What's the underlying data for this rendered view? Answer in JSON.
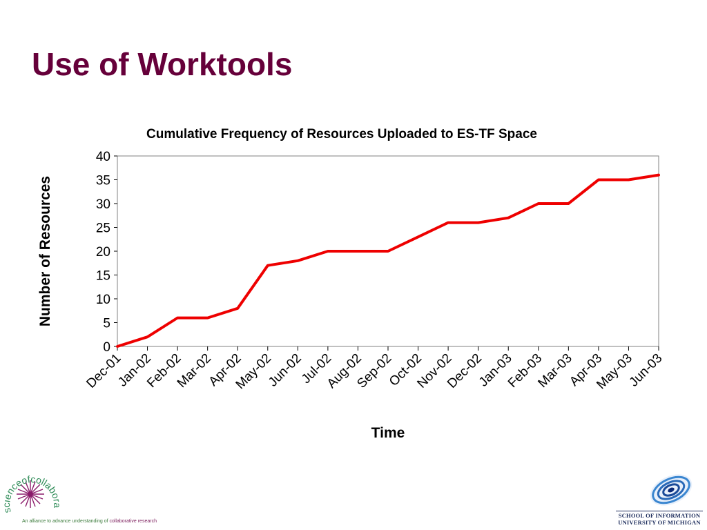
{
  "slide": {
    "title": "Use of Worktools"
  },
  "chart_data": {
    "type": "line",
    "title": "Cumulative Frequency of Resources Uploaded to ES-TF Space",
    "xlabel": "Time",
    "ylabel": "Number of Resources",
    "categories": [
      "Dec-01",
      "Jan-02",
      "Feb-02",
      "Mar-02",
      "Apr-02",
      "May-02",
      "Jun-02",
      "Jul-02",
      "Aug-02",
      "Sep-02",
      "Oct-02",
      "Nov-02",
      "Dec-02",
      "Jan-03",
      "Feb-03",
      "Mar-03",
      "Apr-03",
      "May-03",
      "Jun-03"
    ],
    "values": [
      0,
      2,
      6,
      6,
      8,
      17,
      18,
      20,
      20,
      20,
      23,
      26,
      26,
      27,
      30,
      30,
      35,
      35,
      36
    ],
    "ylim": [
      0,
      40
    ],
    "yticks": [
      0,
      5,
      10,
      15,
      20,
      25,
      30,
      35,
      40
    ],
    "grid": false,
    "legend": "none",
    "line_color": "#ee0000"
  },
  "footer": {
    "left_logo_text": [
      "scienceofcollaboratories"
    ],
    "tagline_start": "An alliance to advance understanding of ",
    "tagline_accent": "collaborative research",
    "school_line1": "SCHOOL OF INFORMATION",
    "school_line2": "UNIVERSITY OF MICHIGAN"
  }
}
